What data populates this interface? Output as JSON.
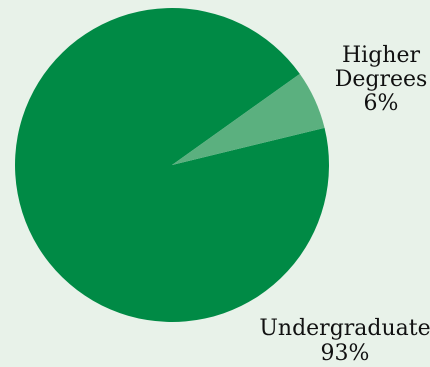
{
  "chart_data": {
    "type": "pie",
    "slices": [
      {
        "name": "Undergraduate",
        "value": 93,
        "label_value": "93%",
        "color": "#008a45"
      },
      {
        "name": "Higher Degrees",
        "value": 6,
        "label_value": "6%",
        "color": "#5bb07f"
      }
    ],
    "title": "",
    "legend": "none"
  }
}
